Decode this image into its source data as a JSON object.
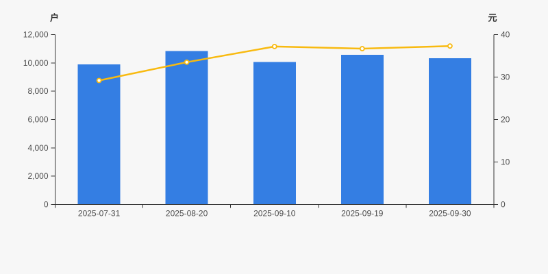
{
  "canvas": {
    "background": "#f7f7f7"
  },
  "chart_data": {
    "type": "bar",
    "subtype": "dual-axis-bar-line",
    "title": "",
    "legend_position": "none",
    "grid": false,
    "categories": [
      "2025-07-31",
      "2025-08-20",
      "2025-09-10",
      "2025-09-19",
      "2025-09-30"
    ],
    "series": [
      {
        "id": "bars",
        "type": "bar",
        "axis": "left",
        "color": "#347ee3",
        "values": [
          9900,
          10840,
          10060,
          10580,
          10340
        ]
      },
      {
        "id": "line",
        "type": "line",
        "axis": "right",
        "color": "#f8ba10",
        "marker_fill": "#ffffff",
        "values": [
          29.2,
          33.5,
          37.2,
          36.7,
          37.3
        ]
      }
    ],
    "left_axis": {
      "name": "户",
      "min": 0,
      "max": 12000,
      "interval": 2000,
      "tick_labels": [
        "0",
        "2,000",
        "4,000",
        "6,000",
        "8,000",
        "10,000",
        "12,000"
      ]
    },
    "right_axis": {
      "name": "元",
      "min": 0,
      "max": 40,
      "interval": 10,
      "tick_labels": [
        "0",
        "10",
        "20",
        "30",
        "40"
      ]
    },
    "x_axis": {
      "tick_labels": [
        "2025-07-31",
        "2025-08-20",
        "2025-09-10",
        "2025-09-19",
        "2025-09-30"
      ]
    },
    "styles": {
      "axis_line_color": "#333333",
      "tick_label_color": "#4d4d4d",
      "axis_name_color": "#333333"
    }
  }
}
